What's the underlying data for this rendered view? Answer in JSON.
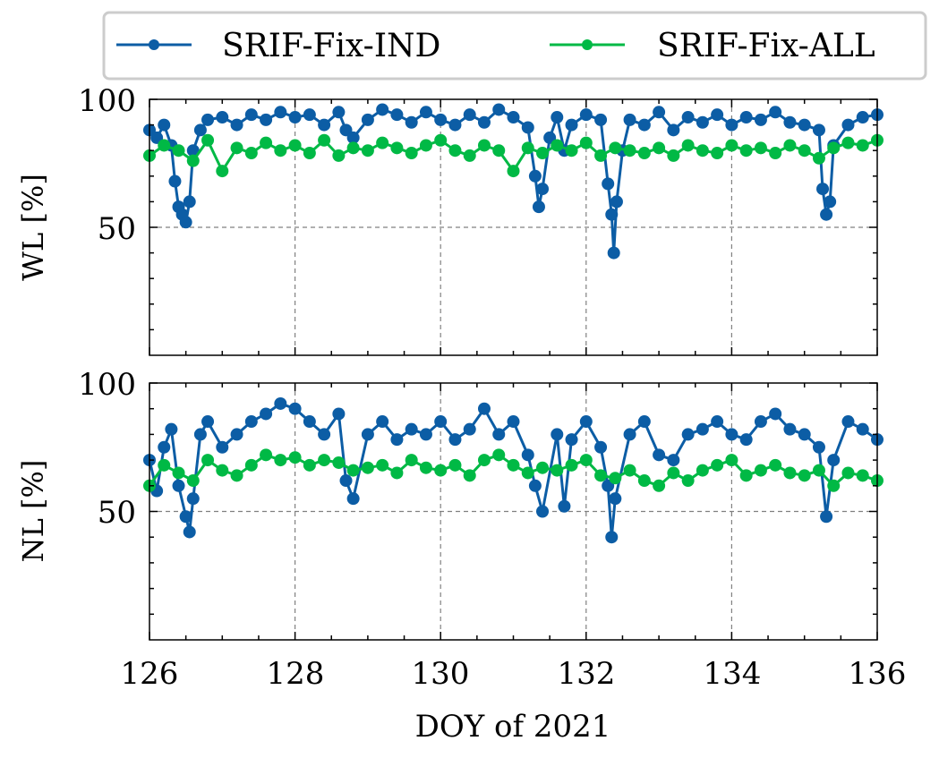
{
  "chart_data": {
    "type": "line",
    "xlabel": "DOY of 2021",
    "xlim": [
      126,
      136
    ],
    "x_ticks": [
      "126",
      "128",
      "130",
      "132",
      "134",
      "136"
    ],
    "legend": {
      "placement": "top",
      "entries": [
        {
          "name": "SRIF-Fix-IND",
          "color": "#0C5DA5"
        },
        {
          "name": "SRIF-Fix-ALL",
          "color": "#00B945"
        }
      ]
    },
    "grid": true,
    "panels": [
      {
        "ylabel": "WL [%]",
        "ylim": [
          0,
          100
        ],
        "y_ticks": [
          "50",
          "100"
        ],
        "series": [
          {
            "name": "SRIF-Fix-IND",
            "color": "#0C5DA5",
            "x": [
              126.0,
              126.1,
              126.2,
              126.3,
              126.35,
              126.4,
              126.45,
              126.5,
              126.55,
              126.6,
              126.7,
              126.8,
              127.0,
              127.2,
              127.4,
              127.6,
              127.8,
              128.0,
              128.2,
              128.4,
              128.6,
              128.7,
              128.8,
              129.0,
              129.2,
              129.4,
              129.6,
              129.8,
              130.0,
              130.2,
              130.4,
              130.6,
              130.8,
              131.0,
              131.2,
              131.3,
              131.35,
              131.4,
              131.5,
              131.6,
              131.7,
              131.8,
              132.0,
              132.2,
              132.3,
              132.35,
              132.38,
              132.42,
              132.5,
              132.6,
              132.8,
              133.0,
              133.2,
              133.4,
              133.6,
              133.8,
              134.0,
              134.2,
              134.4,
              134.6,
              134.8,
              135.0,
              135.2,
              135.25,
              135.3,
              135.35,
              135.4,
              135.6,
              135.8,
              136.0
            ],
            "y": [
              88,
              85,
              90,
              82,
              68,
              58,
              55,
              52,
              60,
              80,
              88,
              92,
              93,
              90,
              94,
              92,
              95,
              93,
              94,
              90,
              95,
              88,
              85,
              92,
              96,
              94,
              91,
              95,
              92,
              90,
              94,
              91,
              96,
              93,
              89,
              70,
              58,
              65,
              85,
              93,
              80,
              90,
              94,
              92,
              67,
              55,
              40,
              60,
              80,
              92,
              90,
              95,
              88,
              93,
              91,
              94,
              90,
              93,
              92,
              95,
              91,
              90,
              88,
              65,
              55,
              60,
              82,
              90,
              93,
              94
            ]
          },
          {
            "name": "SRIF-Fix-ALL",
            "color": "#00B945",
            "x": [
              126.0,
              126.2,
              126.4,
              126.6,
              126.8,
              127.0,
              127.2,
              127.4,
              127.6,
              127.8,
              128.0,
              128.2,
              128.4,
              128.6,
              128.8,
              129.0,
              129.2,
              129.4,
              129.6,
              129.8,
              130.0,
              130.2,
              130.4,
              130.6,
              130.8,
              131.0,
              131.2,
              131.4,
              131.6,
              131.8,
              132.0,
              132.2,
              132.4,
              132.6,
              132.8,
              133.0,
              133.2,
              133.4,
              133.6,
              133.8,
              134.0,
              134.2,
              134.4,
              134.6,
              134.8,
              135.0,
              135.2,
              135.4,
              135.6,
              135.8,
              136.0
            ],
            "y": [
              78,
              82,
              80,
              76,
              84,
              72,
              81,
              79,
              83,
              80,
              82,
              79,
              84,
              78,
              81,
              80,
              83,
              81,
              79,
              82,
              84,
              80,
              78,
              82,
              80,
              72,
              81,
              79,
              82,
              80,
              83,
              78,
              81,
              80,
              79,
              81,
              78,
              82,
              80,
              79,
              82,
              80,
              81,
              79,
              82,
              80,
              77,
              81,
              83,
              82,
              84
            ]
          }
        ]
      },
      {
        "ylabel": "NL [%]",
        "ylim": [
          0,
          100
        ],
        "y_ticks": [
          "50",
          "100"
        ],
        "series": [
          {
            "name": "SRIF-Fix-IND",
            "color": "#0C5DA5",
            "x": [
              126.0,
              126.1,
              126.2,
              126.3,
              126.4,
              126.5,
              126.55,
              126.6,
              126.7,
              126.8,
              127.0,
              127.2,
              127.4,
              127.6,
              127.8,
              128.0,
              128.2,
              128.4,
              128.6,
              128.7,
              128.8,
              129.0,
              129.2,
              129.4,
              129.6,
              129.8,
              130.0,
              130.2,
              130.4,
              130.6,
              130.8,
              131.0,
              131.2,
              131.3,
              131.4,
              131.6,
              131.7,
              131.8,
              132.0,
              132.2,
              132.3,
              132.35,
              132.4,
              132.6,
              132.8,
              133.0,
              133.2,
              133.4,
              133.6,
              133.8,
              134.0,
              134.2,
              134.4,
              134.6,
              134.8,
              135.0,
              135.2,
              135.3,
              135.4,
              135.6,
              135.8,
              136.0
            ],
            "y": [
              70,
              58,
              75,
              82,
              60,
              48,
              42,
              55,
              80,
              85,
              75,
              80,
              85,
              88,
              92,
              90,
              85,
              80,
              88,
              62,
              55,
              80,
              85,
              78,
              82,
              80,
              85,
              78,
              82,
              90,
              80,
              85,
              72,
              60,
              50,
              80,
              52,
              78,
              85,
              75,
              60,
              40,
              55,
              80,
              85,
              72,
              70,
              80,
              82,
              85,
              80,
              78,
              85,
              88,
              82,
              80,
              75,
              48,
              70,
              85,
              82,
              78
            ]
          },
          {
            "name": "SRIF-Fix-ALL",
            "color": "#00B945",
            "x": [
              126.0,
              126.2,
              126.4,
              126.6,
              126.8,
              127.0,
              127.2,
              127.4,
              127.6,
              127.8,
              128.0,
              128.2,
              128.4,
              128.6,
              128.8,
              129.0,
              129.2,
              129.4,
              129.6,
              129.8,
              130.0,
              130.2,
              130.4,
              130.6,
              130.8,
              131.0,
              131.2,
              131.4,
              131.6,
              131.8,
              132.0,
              132.2,
              132.4,
              132.6,
              132.8,
              133.0,
              133.2,
              133.4,
              133.6,
              133.8,
              134.0,
              134.2,
              134.4,
              134.6,
              134.8,
              135.0,
              135.2,
              135.4,
              135.6,
              135.8,
              136.0
            ],
            "y": [
              60,
              68,
              65,
              62,
              70,
              66,
              64,
              68,
              72,
              70,
              71,
              68,
              70,
              69,
              66,
              67,
              68,
              65,
              70,
              67,
              66,
              68,
              64,
              70,
              72,
              68,
              65,
              67,
              66,
              68,
              70,
              64,
              63,
              66,
              62,
              60,
              65,
              62,
              66,
              68,
              70,
              64,
              66,
              68,
              65,
              64,
              66,
              60,
              65,
              64,
              62
            ]
          }
        ]
      }
    ]
  }
}
